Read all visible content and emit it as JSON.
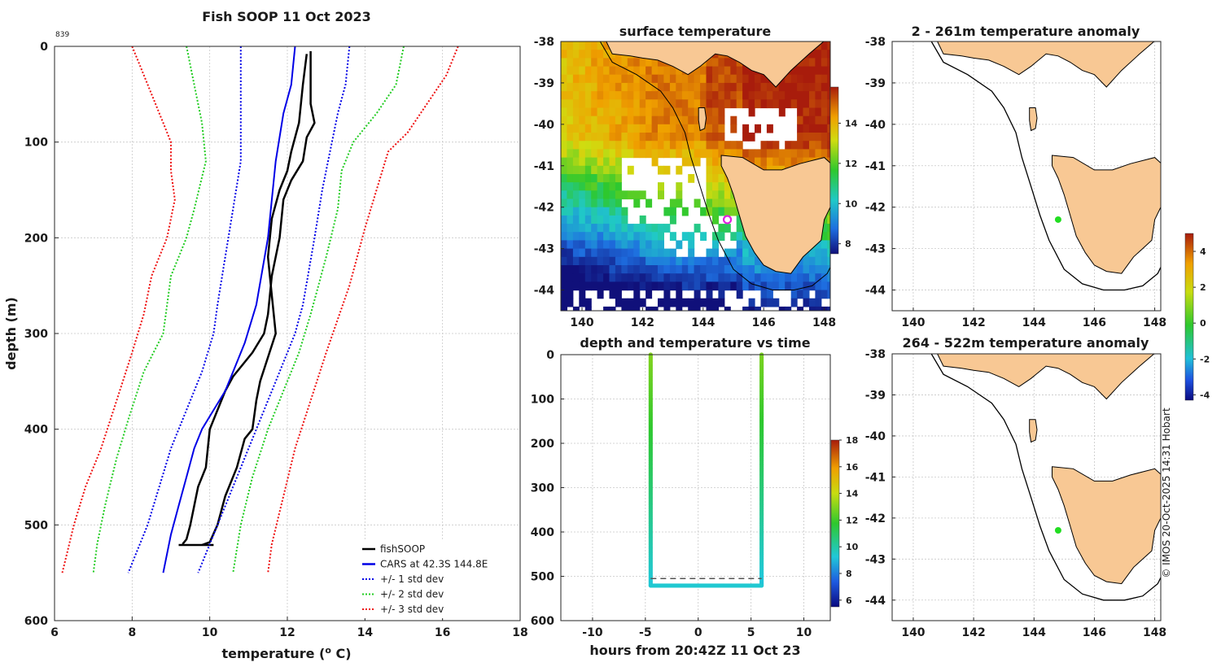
{
  "page": {
    "footer": "© IMOS 20-Oct-2025 14:31 Hobart"
  },
  "profile_panel": {
    "title": "Fish SOOP 11 Oct 2023",
    "id_label": "839"
  },
  "legend": {
    "items": [
      {
        "label": "fishSOOP",
        "color": "#000000",
        "style": "solid"
      },
      {
        "label": "CARS at 42.3S 144.8E",
        "color": "#0000e6",
        "style": "solid"
      },
      {
        "label": "+/- 1 std dev",
        "color": "#0000e6",
        "style": "dotted"
      },
      {
        "label": "+/- 2 std dev",
        "color": "#22cc22",
        "style": "dotted"
      },
      {
        "label": "+/- 3 std dev",
        "color": "#ee1111",
        "style": "dotted"
      }
    ]
  },
  "colors": {
    "land": "#f8c894",
    "coast": "#000000",
    "marker_ring": "#e020e0",
    "marker_dot": "#22dd22"
  },
  "chart_data": [
    {
      "id": "profile",
      "type": "line",
      "title": "Fish SOOP 11 Oct 2023",
      "xlabel": "temperature (",
      "xlabel_sup": "o",
      "xlabel_end": " C)",
      "ylabel": "depth (m)",
      "xlim": [
        6,
        18
      ],
      "ylim": [
        0,
        600
      ],
      "x_ticks": [
        "6",
        "8",
        "10",
        "12",
        "14",
        "16",
        "18"
      ],
      "y_ticks": [
        "0",
        "100",
        "200",
        "300",
        "400",
        "500",
        "600"
      ],
      "series": [
        {
          "name": "fishSOOP down",
          "color": "#000000",
          "style": "solid",
          "width": 2.5,
          "points": [
            [
              12.6,
              5
            ],
            [
              12.6,
              60
            ],
            [
              12.7,
              80
            ],
            [
              12.5,
              95
            ],
            [
              12.4,
              120
            ],
            [
              12.1,
              140
            ],
            [
              11.9,
              160
            ],
            [
              11.8,
              200
            ],
            [
              11.6,
              240
            ],
            [
              11.5,
              280
            ],
            [
              11.4,
              300
            ],
            [
              11.1,
              320
            ],
            [
              10.6,
              345
            ],
            [
              10.4,
              360
            ],
            [
              10.2,
              380
            ],
            [
              10.0,
              400
            ],
            [
              9.9,
              440
            ],
            [
              9.7,
              460
            ],
            [
              9.6,
              480
            ],
            [
              9.5,
              500
            ],
            [
              9.4,
              515
            ],
            [
              9.3,
              520
            ]
          ]
        },
        {
          "name": "fishSOOP up",
          "color": "#000000",
          "style": "solid",
          "width": 2.5,
          "points": [
            [
              12.5,
              8
            ],
            [
              12.4,
              40
            ],
            [
              12.3,
              80
            ],
            [
              12.1,
              110
            ],
            [
              12.0,
              130
            ],
            [
              11.8,
              150
            ],
            [
              11.6,
              180
            ],
            [
              11.5,
              220
            ],
            [
              11.6,
              260
            ],
            [
              11.7,
              300
            ],
            [
              11.3,
              350
            ],
            [
              11.2,
              370
            ],
            [
              11.1,
              400
            ],
            [
              10.9,
              410
            ],
            [
              10.7,
              440
            ],
            [
              10.4,
              470
            ],
            [
              10.2,
              500
            ],
            [
              10.0,
              518
            ],
            [
              9.8,
              521
            ]
          ]
        },
        {
          "name": "fishSOOP bottom",
          "color": "#000000",
          "style": "solid",
          "width": 2.5,
          "points": [
            [
              9.2,
              521
            ],
            [
              10.1,
              521
            ]
          ]
        },
        {
          "name": "CARS at 42.3S 144.8E",
          "color": "#0000e6",
          "style": "solid",
          "width": 2,
          "points": [
            [
              12.2,
              0
            ],
            [
              12.1,
              40
            ],
            [
              11.9,
              70
            ],
            [
              11.7,
              120
            ],
            [
              11.5,
              200
            ],
            [
              11.2,
              270
            ],
            [
              10.9,
              310
            ],
            [
              10.6,
              340
            ],
            [
              10.4,
              360
            ],
            [
              10.1,
              380
            ],
            [
              9.8,
              400
            ],
            [
              9.6,
              420
            ],
            [
              9.4,
              450
            ],
            [
              9.2,
              480
            ],
            [
              9.0,
              510
            ],
            [
              8.8,
              550
            ]
          ]
        },
        {
          "name": "+1 std dev",
          "color": "#0000e6",
          "style": "dotted",
          "width": 2,
          "points": [
            [
              13.6,
              0
            ],
            [
              13.5,
              40
            ],
            [
              13.3,
              70
            ],
            [
              13.1,
              110
            ],
            [
              12.9,
              150
            ],
            [
              12.7,
              200
            ],
            [
              12.4,
              270
            ],
            [
              12.2,
              300
            ],
            [
              11.8,
              340
            ],
            [
              11.5,
              370
            ],
            [
              11.2,
              400
            ],
            [
              10.9,
              430
            ],
            [
              10.6,
              460
            ],
            [
              10.3,
              490
            ],
            [
              10.0,
              520
            ],
            [
              9.7,
              550
            ]
          ]
        },
        {
          "name": "-1 std dev",
          "color": "#0000e6",
          "style": "dotted",
          "width": 2,
          "points": [
            [
              10.8,
              0
            ],
            [
              10.8,
              60
            ],
            [
              10.8,
              120
            ],
            [
              10.6,
              170
            ],
            [
              10.4,
              220
            ],
            [
              10.2,
              270
            ],
            [
              10.1,
              300
            ],
            [
              9.8,
              340
            ],
            [
              9.4,
              380
            ],
            [
              9.0,
              420
            ],
            [
              8.7,
              460
            ],
            [
              8.4,
              500
            ],
            [
              8.1,
              530
            ],
            [
              7.9,
              550
            ]
          ]
        },
        {
          "name": "+2 std dev",
          "color": "#22cc22",
          "style": "dotted",
          "width": 2,
          "points": [
            [
              15.0,
              0
            ],
            [
              14.8,
              40
            ],
            [
              14.3,
              70
            ],
            [
              13.7,
              100
            ],
            [
              13.4,
              130
            ],
            [
              13.3,
              170
            ],
            [
              13.0,
              220
            ],
            [
              12.6,
              280
            ],
            [
              12.3,
              320
            ],
            [
              11.9,
              360
            ],
            [
              11.5,
              400
            ],
            [
              11.1,
              450
            ],
            [
              10.8,
              500
            ],
            [
              10.6,
              550
            ]
          ]
        },
        {
          "name": "-2 std dev",
          "color": "#22cc22",
          "style": "dotted",
          "width": 2,
          "points": [
            [
              9.4,
              0
            ],
            [
              9.6,
              40
            ],
            [
              9.8,
              80
            ],
            [
              9.9,
              120
            ],
            [
              9.6,
              170
            ],
            [
              9.4,
              200
            ],
            [
              9.0,
              240
            ],
            [
              8.8,
              300
            ],
            [
              8.3,
              340
            ],
            [
              7.9,
              390
            ],
            [
              7.6,
              430
            ],
            [
              7.3,
              480
            ],
            [
              7.1,
              520
            ],
            [
              7.0,
              550
            ]
          ]
        },
        {
          "name": "+3 std dev",
          "color": "#ee1111",
          "style": "dotted",
          "width": 2,
          "points": [
            [
              16.4,
              0
            ],
            [
              16.1,
              30
            ],
            [
              15.6,
              60
            ],
            [
              15.1,
              90
            ],
            [
              14.6,
              110
            ],
            [
              14.3,
              150
            ],
            [
              14.0,
              190
            ],
            [
              13.6,
              250
            ],
            [
              13.0,
              320
            ],
            [
              12.6,
              370
            ],
            [
              12.2,
              420
            ],
            [
              11.9,
              470
            ],
            [
              11.6,
              520
            ],
            [
              11.5,
              550
            ]
          ]
        },
        {
          "name": "-3 std dev",
          "color": "#ee1111",
          "style": "dotted",
          "width": 2,
          "points": [
            [
              8.0,
              0
            ],
            [
              8.2,
              20
            ],
            [
              8.5,
              50
            ],
            [
              8.8,
              80
            ],
            [
              9.0,
              100
            ],
            [
              9.0,
              130
            ],
            [
              9.1,
              160
            ],
            [
              8.9,
              200
            ],
            [
              8.5,
              240
            ],
            [
              8.3,
              280
            ],
            [
              8.0,
              320
            ],
            [
              7.6,
              370
            ],
            [
              7.2,
              420
            ],
            [
              6.8,
              460
            ],
            [
              6.5,
              500
            ],
            [
              6.2,
              550
            ]
          ]
        }
      ]
    },
    {
      "id": "sst_map",
      "type": "heatmap",
      "title": "surface temperature",
      "xlim": [
        139.3,
        148.2
      ],
      "ylim": [
        -44.5,
        -38
      ],
      "x_ticks": [
        "140",
        "142",
        "144",
        "146",
        "148"
      ],
      "y_ticks": [
        "-38",
        "-39",
        "-40",
        "-41",
        "-42",
        "-43",
        "-44"
      ],
      "colorbar": {
        "range": [
          7.5,
          15.8
        ],
        "ticks": [
          "8",
          "10",
          "12",
          "14"
        ]
      },
      "marker": {
        "lon": 144.8,
        "lat": -42.3
      }
    },
    {
      "id": "time_series",
      "type": "scatter",
      "title": "depth and temperature vs time",
      "xlabel": "hours from 20:42Z 11 Oct 23",
      "xlim": [
        -13,
        12.5
      ],
      "ylim": [
        0,
        600
      ],
      "x_ticks": [
        "-10",
        "-5",
        "0",
        "5",
        "10"
      ],
      "y_ticks": [
        "0",
        "100",
        "200",
        "300",
        "400",
        "500",
        "600"
      ],
      "colorbar": {
        "range": [
          5.5,
          18
        ],
        "ticks": [
          "6",
          "8",
          "10",
          "12",
          "14",
          "16",
          "18"
        ]
      },
      "descent_hour": -4.5,
      "ascent_hour": 6.0,
      "bottom_depth": 521,
      "reference_depth": 505
    },
    {
      "id": "anomaly_shallow",
      "type": "map",
      "title": "2 - 261m temperature anomaly",
      "xlim": [
        139.3,
        148.2
      ],
      "ylim": [
        -44.5,
        -38
      ],
      "x_ticks": [
        "140",
        "142",
        "144",
        "146",
        "148"
      ],
      "y_ticks": [
        "-38",
        "-39",
        "-40",
        "-41",
        "-42",
        "-43",
        "-44"
      ],
      "marker": {
        "lon": 144.8,
        "lat": -42.3
      }
    },
    {
      "id": "anomaly_deep",
      "type": "map",
      "title": "264 - 522m temperature anomaly",
      "xlim": [
        139.3,
        148.2
      ],
      "ylim": [
        -44.5,
        -38
      ],
      "x_ticks": [
        "140",
        "142",
        "144",
        "146",
        "148"
      ],
      "y_ticks": [
        "-38",
        "-39",
        "-40",
        "-41",
        "-42",
        "-43",
        "-44"
      ],
      "marker": {
        "lon": 144.8,
        "lat": -42.3
      },
      "colorbar": {
        "range": [
          -4.3,
          5
        ],
        "ticks": [
          "-4",
          "-2",
          "0",
          "2",
          "4"
        ]
      }
    }
  ]
}
